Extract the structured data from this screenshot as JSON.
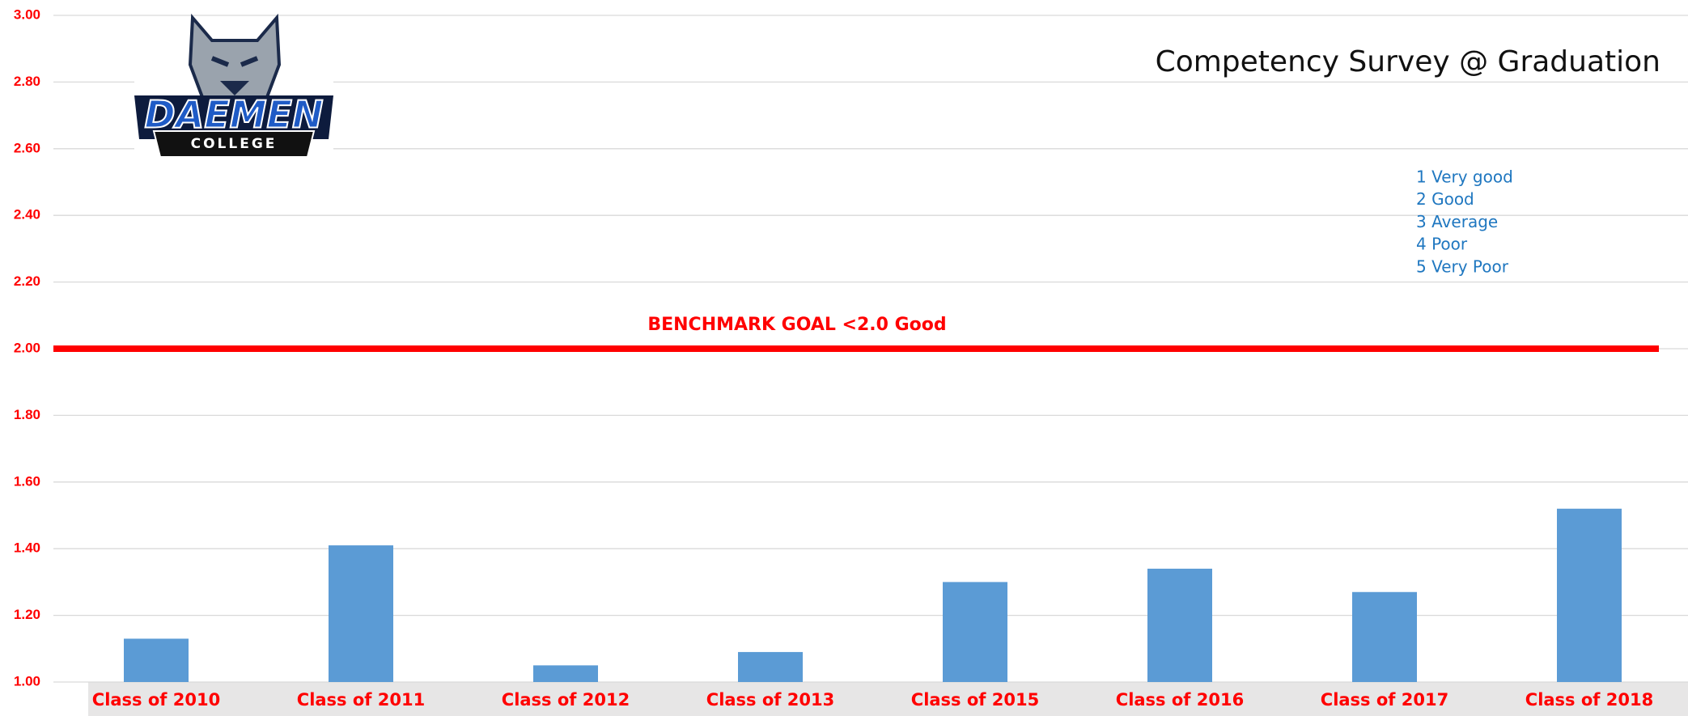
{
  "logo": {
    "name": "DAEMEN",
    "subname": "COLLEGE"
  },
  "chart_data": {
    "type": "bar",
    "title": "Competency Survey @ Graduation",
    "categories": [
      "Class of 2010",
      "Class of 2011",
      "Class of 2012",
      "Class of 2013",
      "Class of 2015",
      "Class of 2016",
      "Class of 2017",
      "Class of 2018"
    ],
    "values": [
      1.13,
      1.41,
      1.05,
      1.09,
      1.3,
      1.34,
      1.27,
      1.52
    ],
    "color": "#5b9bd5",
    "ylim": [
      1,
      3
    ],
    "yticks": [
      {
        "value": 1,
        "label": "1.00"
      },
      {
        "value": 1.2,
        "label": "1.20"
      },
      {
        "value": 1.4,
        "label": "1.40"
      },
      {
        "value": 1.6,
        "label": "1.60"
      },
      {
        "value": 1.8,
        "label": "1.80"
      },
      {
        "value": 2,
        "label": "2.00"
      },
      {
        "value": 2.2,
        "label": "2.20"
      },
      {
        "value": 2.4,
        "label": "2.40"
      },
      {
        "value": 2.6,
        "label": "2.60"
      },
      {
        "value": 2.8,
        "label": "2.80"
      },
      {
        "value": 3,
        "label": "3.00"
      }
    ],
    "grid": true,
    "reference_line": {
      "value": 2,
      "label": "BENCHMARK GOAL <2.0 Good",
      "color": "#ff0000"
    },
    "scale_legend": [
      "1 Very good",
      "2 Good",
      "3 Average",
      "4 Poor",
      "5 Very Poor"
    ]
  }
}
